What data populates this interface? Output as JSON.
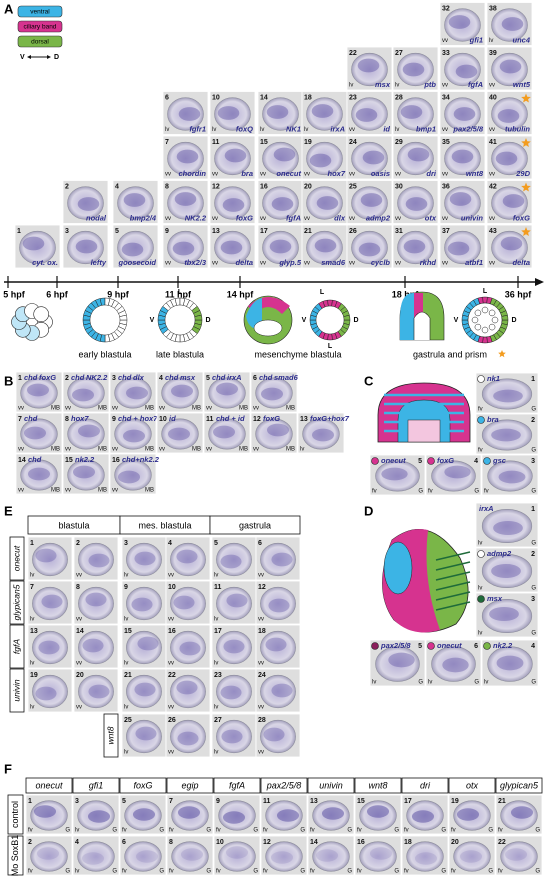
{
  "panel_a": {
    "letter": "A",
    "legend": {
      "items": [
        {
          "label": "ventral",
          "color": "#3cb4e5"
        },
        {
          "label": "ciliary band",
          "color": "#d6338f"
        },
        {
          "label": "dorsal",
          "color": "#7ab648"
        }
      ],
      "left": "V",
      "right": "D"
    },
    "timeline": [
      "5 hpf",
      "6 hpf",
      "9 hpf",
      "11 hpf",
      "14 hpf",
      "18 hpf",
      "36 hpf"
    ],
    "stages": [
      "early blastula",
      "late blastula",
      "mesenchyme blastula",
      "gastrula and prism"
    ],
    "diagram_labels": [
      "L",
      "V",
      "D",
      "L",
      "V",
      "D",
      "L",
      "L",
      "V",
      "D"
    ],
    "tiles": [
      {
        "n": "1",
        "gene": "cyt. ox."
      },
      {
        "n": "2",
        "gene": "nodal"
      },
      {
        "n": "3",
        "gene": "lefty"
      },
      {
        "n": "4",
        "gene": "bmp2/4"
      },
      {
        "n": "5",
        "gene": "goosecoid"
      },
      {
        "n": "6",
        "gene": "fgfr1",
        "view": "lv"
      },
      {
        "n": "7",
        "gene": "chordin",
        "view": "vv"
      },
      {
        "n": "8",
        "gene": "NK2.2",
        "view": "vv"
      },
      {
        "n": "9",
        "gene": "tbx2/3",
        "view": "vv"
      },
      {
        "n": "10",
        "gene": "foxQ",
        "view": "lv"
      },
      {
        "n": "11",
        "gene": "bra",
        "view": "vv"
      },
      {
        "n": "12",
        "gene": "foxG",
        "view": "vv"
      },
      {
        "n": "13",
        "gene": "delta",
        "view": "vv"
      },
      {
        "n": "14",
        "gene": "NK1",
        "view": "lv"
      },
      {
        "n": "15",
        "gene": "onecut",
        "view": "vv"
      },
      {
        "n": "16",
        "gene": "fgfA",
        "view": "vv"
      },
      {
        "n": "17",
        "gene": "glyp.5",
        "view": "vv"
      },
      {
        "n": "18",
        "gene": "irxA",
        "view": "lv"
      },
      {
        "n": "19",
        "gene": "hox7",
        "view": "vv"
      },
      {
        "n": "20",
        "gene": "dlx",
        "view": "vv"
      },
      {
        "n": "21",
        "gene": "smad6",
        "view": "vv"
      },
      {
        "n": "22",
        "gene": "msx",
        "view": "lv"
      },
      {
        "n": "23",
        "gene": "id",
        "view": "vv"
      },
      {
        "n": "24",
        "gene": "oasis",
        "view": "vv"
      },
      {
        "n": "25",
        "gene": "admp2",
        "view": "vv"
      },
      {
        "n": "26",
        "gene": "cyclb",
        "view": "vv"
      },
      {
        "n": "27",
        "gene": "ptb",
        "view": "lv"
      },
      {
        "n": "28",
        "gene": "bmp1",
        "view": "lv"
      },
      {
        "n": "29",
        "gene": "dri",
        "view": "vv"
      },
      {
        "n": "30",
        "gene": "otx",
        "view": "vv"
      },
      {
        "n": "31",
        "gene": "rkhd",
        "view": "vv"
      },
      {
        "n": "32",
        "gene": "gfi1",
        "view": "vv"
      },
      {
        "n": "33",
        "gene": "fgfA",
        "view": "vv"
      },
      {
        "n": "34",
        "gene": "pax2/5/8",
        "view": "vv"
      },
      {
        "n": "35",
        "gene": "wnt8",
        "view": "vv"
      },
      {
        "n": "36",
        "gene": "univin",
        "view": "vv"
      },
      {
        "n": "37",
        "gene": "atbf1",
        "view": "vv"
      },
      {
        "n": "38",
        "gene": "unc4",
        "view": "lv"
      },
      {
        "n": "39",
        "gene": "wnt5",
        "view": "vv"
      },
      {
        "n": "40",
        "gene": "tubulin",
        "view": "vv",
        "star": true
      },
      {
        "n": "41",
        "gene": "29D",
        "view": "vv",
        "star": true
      },
      {
        "n": "42",
        "gene": "foxG",
        "view": "vv",
        "star": true
      },
      {
        "n": "43",
        "gene": "delta",
        "view": "vv",
        "star": true
      }
    ]
  },
  "panel_b": {
    "letter": "B",
    "tiles": [
      {
        "n": "1",
        "genes": [
          {
            "text": "chd",
            "color": "#e0338f"
          },
          {
            "text": "foxG"
          }
        ],
        "views": [
          "vv",
          "MB"
        ]
      },
      {
        "n": "2",
        "genes": [
          {
            "text": "chd",
            "color": "#e0338f"
          },
          {
            "text": "NK2.2"
          }
        ],
        "views": [
          "vv",
          "MB"
        ]
      },
      {
        "n": "3",
        "genes": [
          {
            "text": "chd",
            "color": "#e0338f"
          },
          {
            "text": "dlx"
          }
        ],
        "views": [
          "vv",
          "MB"
        ]
      },
      {
        "n": "4",
        "genes": [
          {
            "text": "chd",
            "color": "#e0338f"
          },
          {
            "text": "msx"
          }
        ],
        "views": [
          "vv",
          "MB"
        ]
      },
      {
        "n": "5",
        "genes": [
          {
            "text": "chd",
            "color": "#e0338f"
          },
          {
            "text": "irxA"
          }
        ],
        "views": [
          "vv",
          "MB"
        ]
      },
      {
        "n": "6",
        "genes": [
          {
            "text": "chd",
            "color": "#e0338f"
          },
          {
            "text": "smad6"
          }
        ],
        "views": [
          "vv",
          "MB"
        ]
      },
      {
        "n": "7",
        "genes": [
          {
            "text": "chd"
          }
        ],
        "views": [
          "vv",
          "MB"
        ]
      },
      {
        "n": "8",
        "genes": [
          {
            "text": "hox7"
          }
        ],
        "views": [
          "vv",
          "MB"
        ]
      },
      {
        "n": "9",
        "genes": [
          {
            "text": "chd + hox7"
          }
        ],
        "views": [
          "vv",
          "MB"
        ]
      },
      {
        "n": "10",
        "genes": [
          {
            "text": "id"
          }
        ],
        "views": [
          "vv",
          "MB"
        ]
      },
      {
        "n": "11",
        "genes": [
          {
            "text": "chd + id"
          }
        ],
        "views": [
          "vv",
          "MB"
        ]
      },
      {
        "n": "12",
        "genes": [
          {
            "text": "foxG"
          }
        ],
        "views": [
          "vv",
          "MB"
        ]
      },
      {
        "n": "13",
        "genes": [
          {
            "text": "foxG+hox7"
          }
        ],
        "views": [
          "lv"
        ]
      },
      {
        "n": "14",
        "genes": [
          {
            "text": "chd"
          }
        ],
        "views": [
          "vv",
          "MB"
        ]
      },
      {
        "n": "15",
        "genes": [
          {
            "text": "nk2.2"
          }
        ],
        "views": [
          "vv",
          "MB"
        ]
      },
      {
        "n": "16",
        "genes": [
          {
            "text": "chd+nk2.2"
          }
        ],
        "views": [
          "vv",
          "MB"
        ]
      }
    ]
  },
  "panel_c": {
    "letter": "C",
    "tiles": [
      {
        "n": "1",
        "gene": "nk1",
        "dot": "#ffffff",
        "views": [
          "fv",
          "G"
        ]
      },
      {
        "n": "2",
        "gene": "bra",
        "dot": "#3cb4e5",
        "views": [
          "fv",
          "G"
        ]
      },
      {
        "n": "5",
        "gene": "onecut",
        "dot": "#d6338f",
        "views": [
          "fv",
          "G"
        ]
      },
      {
        "n": "4",
        "gene": "foxG",
        "dot": "#d6338f",
        "views": [
          "fv",
          "G"
        ]
      },
      {
        "n": "3",
        "gene": "gsc",
        "dot": "#3cb4e5",
        "views": [
          "fv",
          "G"
        ]
      }
    ]
  },
  "panel_d": {
    "letter": "D",
    "tiles": [
      {
        "n": "1",
        "gene": "irxA",
        "views": [
          "lv",
          "G"
        ]
      },
      {
        "n": "2",
        "gene": "admp2",
        "dot": "#ffffff",
        "views": [
          "lv",
          "G"
        ]
      },
      {
        "n": "3",
        "gene": "msx",
        "dot": "#1f6b3a",
        "views": [
          "lv",
          "G"
        ]
      },
      {
        "n": "5",
        "gene": "pax2/5/8",
        "dot": "#8a1f5c",
        "views": [
          "lv",
          "G"
        ]
      },
      {
        "n": "6",
        "gene": "onecut",
        "dot": "#d6338f",
        "views": [
          "lv",
          "G"
        ]
      },
      {
        "n": "4",
        "gene": "nk2.2",
        "dot": "#7ab648",
        "views": [
          "lv",
          "G"
        ]
      }
    ]
  },
  "panel_e": {
    "letter": "E",
    "headers": [
      "blastula",
      "mes. blastula",
      "gastrula"
    ],
    "rows": [
      {
        "label": "onecut",
        "tiles": [
          {
            "n": "1",
            "view": "lv"
          },
          {
            "n": "2",
            "view": "vv"
          },
          {
            "n": "3",
            "view": "lv"
          },
          {
            "n": "4",
            "view": "vv"
          },
          {
            "n": "5",
            "view": "lv"
          },
          {
            "n": "6",
            "view": "vv"
          }
        ]
      },
      {
        "label": "glypican5",
        "tiles": [
          {
            "n": "7",
            "view": "lv"
          },
          {
            "n": "8",
            "view": "vv"
          },
          {
            "n": "9",
            "view": "lv"
          },
          {
            "n": "10",
            "view": "vv"
          },
          {
            "n": "11",
            "view": "lv"
          },
          {
            "n": "12",
            "view": "vv"
          }
        ]
      },
      {
        "label": "fgfA",
        "tiles": [
          {
            "n": "13",
            "view": "lv"
          },
          {
            "n": "14",
            "view": "vv"
          },
          {
            "n": "15",
            "view": "lv"
          },
          {
            "n": "16",
            "view": "vv"
          },
          {
            "n": "17",
            "view": "lv"
          },
          {
            "n": "18",
            "view": "vv"
          }
        ]
      },
      {
        "label": "univin",
        "tiles": [
          {
            "n": "19",
            "view": "lv"
          },
          {
            "n": "20",
            "view": "vv"
          },
          {
            "n": "21",
            "view": "lv"
          },
          {
            "n": "22",
            "view": "vv"
          },
          {
            "n": "23",
            "view": "lv"
          },
          {
            "n": "24",
            "view": "vv"
          }
        ]
      },
      {
        "label": "wnt8",
        "tiles": [
          {
            "n": "25",
            "view": "lv"
          },
          {
            "n": "26",
            "view": "vv"
          },
          {
            "n": "27",
            "view": "lv"
          },
          {
            "n": "28",
            "view": "vv"
          }
        ]
      }
    ]
  },
  "panel_f": {
    "letter": "F",
    "genes": [
      "onecut",
      "gfi1",
      "foxG",
      "egip",
      "fgfA",
      "pax2/5/8",
      "univin",
      "wnt8",
      "dri",
      "otx",
      "glypican5"
    ],
    "rows": [
      {
        "label": "control",
        "tiles": [
          {
            "n": "1",
            "views": [
              "fv",
              "G"
            ]
          },
          {
            "n": "3",
            "views": [
              "lv",
              "G"
            ]
          },
          {
            "n": "5",
            "views": [
              "fv",
              "G"
            ]
          },
          {
            "n": "7",
            "views": [
              "fv",
              "G"
            ]
          },
          {
            "n": "9",
            "views": [
              "fv",
              "G"
            ]
          },
          {
            "n": "11",
            "views": [
              "fv",
              "G"
            ]
          },
          {
            "n": "13",
            "views": [
              "fv",
              "G"
            ]
          },
          {
            "n": "15",
            "views": [
              "fv",
              "G"
            ]
          },
          {
            "n": "17",
            "views": [
              "fv",
              "G"
            ]
          },
          {
            "n": "19",
            "views": [
              "fv",
              "G"
            ]
          },
          {
            "n": "21",
            "views": [
              "fv",
              "G"
            ]
          }
        ]
      },
      {
        "label": "Mo SoxB1",
        "tiles": [
          {
            "n": "2",
            "views": [
              "fv",
              "G"
            ]
          },
          {
            "n": "4",
            "views": [
              "lv",
              "G"
            ]
          },
          {
            "n": "6",
            "views": [
              "fv",
              "G"
            ]
          },
          {
            "n": "8",
            "views": [
              "fv",
              "G"
            ]
          },
          {
            "n": "10",
            "views": [
              "fv",
              "G"
            ]
          },
          {
            "n": "12",
            "views": [
              "fv",
              "G"
            ]
          },
          {
            "n": "14",
            "views": [
              "fv",
              "G"
            ]
          },
          {
            "n": "16",
            "views": [
              "fv",
              "G"
            ]
          },
          {
            "n": "18",
            "views": [
              "fv",
              "G"
            ]
          },
          {
            "n": "20",
            "views": [
              "fv",
              "G"
            ]
          },
          {
            "n": "22",
            "views": [
              "fv",
              "G"
            ]
          }
        ]
      }
    ]
  }
}
